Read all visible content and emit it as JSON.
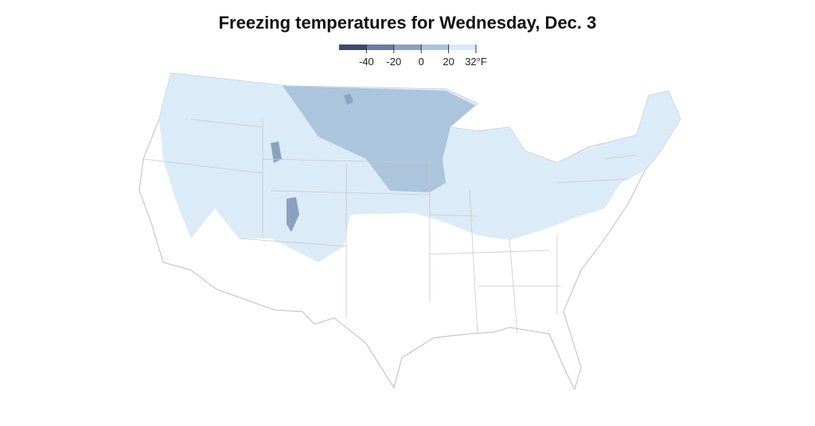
{
  "title": "Freezing temperatures for Wednesday, Dec. 3",
  "legend": {
    "colors": [
      "#3e4a6b",
      "#6b7ca0",
      "#8ba2bf",
      "#abc5dd",
      "#dcebf8"
    ],
    "ticks": [
      -40,
      -20,
      0,
      20,
      {
        "value": 32,
        "label": "32°F"
      }
    ]
  }
}
